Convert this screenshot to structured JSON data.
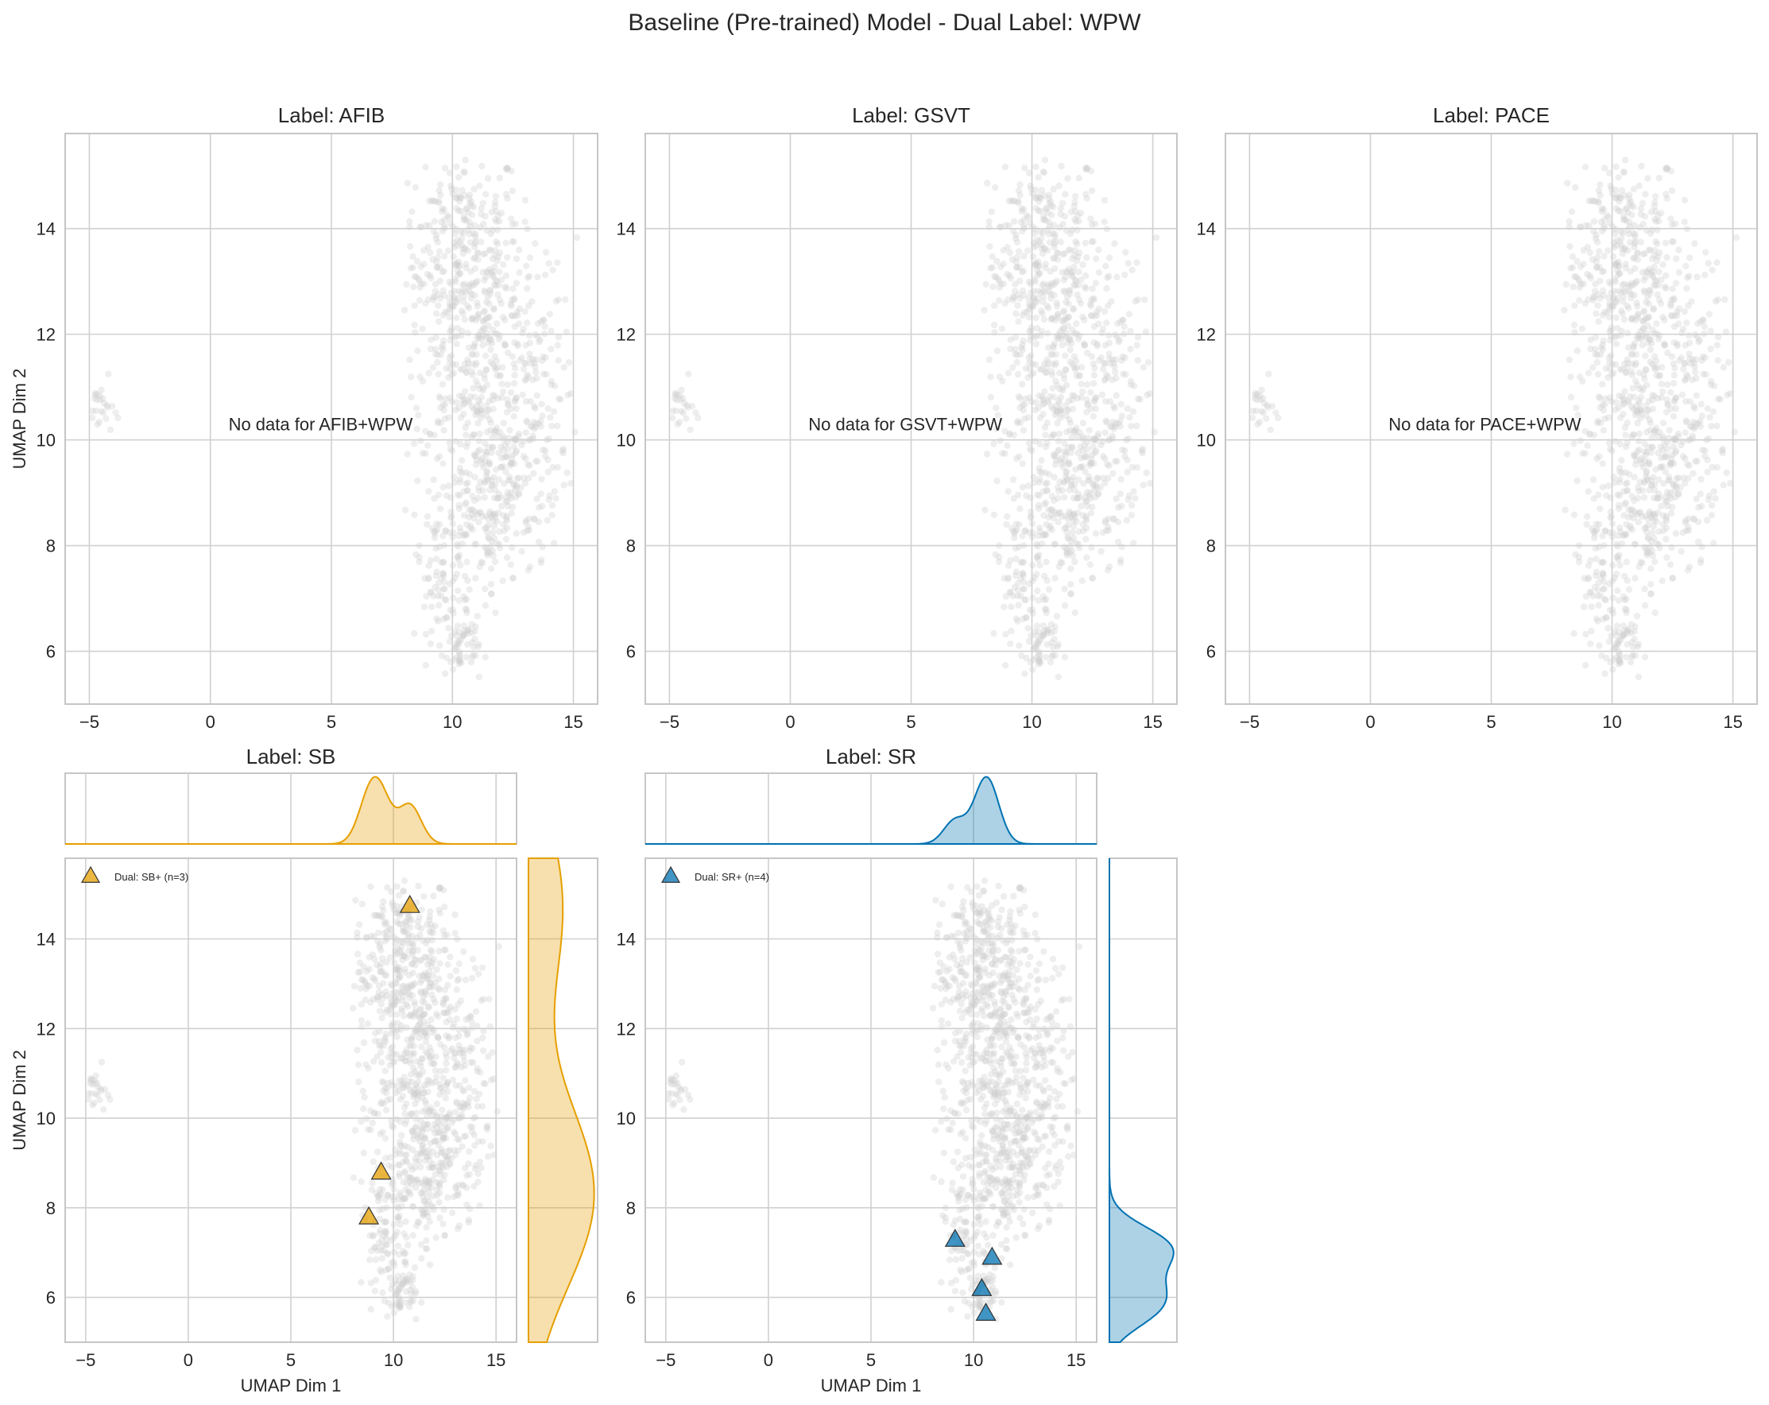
{
  "figure": {
    "suptitle": "Baseline (Pre-trained) Model - Dual Label: WPW"
  },
  "colors": {
    "background_points": "#cfcfcf",
    "grid": "#d0d0d0",
    "spine": "#c6c6c6",
    "text": "#262626",
    "sb": "#e69f00",
    "sr": "#0072b2"
  },
  "chart_data": [
    {
      "id": "afib",
      "type": "scatter",
      "title": "Label: AFIB",
      "xlabel": "",
      "ylabel": "UMAP Dim 2",
      "xlim": [
        -6,
        16
      ],
      "ylim": [
        5,
        15.8
      ],
      "xticks": [
        -5,
        0,
        5,
        10,
        15
      ],
      "yticks": [
        6,
        8,
        10,
        12,
        14
      ],
      "grid": true,
      "annotation": "No data for AFIB+WPW",
      "series": []
    },
    {
      "id": "gsvt",
      "type": "scatter",
      "title": "Label: GSVT",
      "xlabel": "",
      "ylabel": "",
      "xlim": [
        -6,
        16
      ],
      "ylim": [
        5,
        15.8
      ],
      "xticks": [
        -5,
        0,
        5,
        10,
        15
      ],
      "yticks": [
        6,
        8,
        10,
        12,
        14
      ],
      "grid": true,
      "annotation": "No data for GSVT+WPW",
      "series": []
    },
    {
      "id": "pace",
      "type": "scatter",
      "title": "Label: PACE",
      "xlabel": "",
      "ylabel": "",
      "xlim": [
        -6,
        16
      ],
      "ylim": [
        5,
        15.8
      ],
      "xticks": [
        -5,
        0,
        5,
        10,
        15
      ],
      "yticks": [
        6,
        8,
        10,
        12,
        14
      ],
      "grid": true,
      "annotation": "No data for PACE+WPW",
      "series": []
    },
    {
      "id": "sb",
      "type": "scatter",
      "title": "Label: SB",
      "xlabel": "UMAP Dim 1",
      "ylabel": "UMAP Dim 2",
      "xlim": [
        -6,
        16
      ],
      "ylim": [
        5,
        15.8
      ],
      "xticks": [
        -5,
        0,
        5,
        10,
        15
      ],
      "yticks": [
        6,
        8,
        10,
        12,
        14
      ],
      "grid": true,
      "legend_position": "top-left",
      "marginals": "kde",
      "series": [
        {
          "name": "Dual: SB+ (n=3)",
          "color": "#e69f00",
          "marker": "triangle",
          "points": [
            [
              10.8,
              14.75
            ],
            [
              9.4,
              8.8
            ],
            [
              8.8,
              7.8
            ]
          ]
        }
      ]
    },
    {
      "id": "sr",
      "type": "scatter",
      "title": "Label: SR",
      "xlabel": "UMAP Dim 1",
      "ylabel": "",
      "xlim": [
        -6,
        16
      ],
      "ylim": [
        5,
        15.8
      ],
      "xticks": [
        -5,
        0,
        5,
        10,
        15
      ],
      "yticks": [
        6,
        8,
        10,
        12,
        14
      ],
      "grid": true,
      "legend_position": "top-left",
      "marginals": "kde",
      "series": [
        {
          "name": "Dual: SR+ (n=4)",
          "color": "#0072b2",
          "marker": "triangle",
          "points": [
            [
              9.1,
              7.3
            ],
            [
              10.9,
              6.9
            ],
            [
              10.4,
              6.2
            ],
            [
              10.6,
              5.65
            ]
          ]
        }
      ]
    }
  ]
}
